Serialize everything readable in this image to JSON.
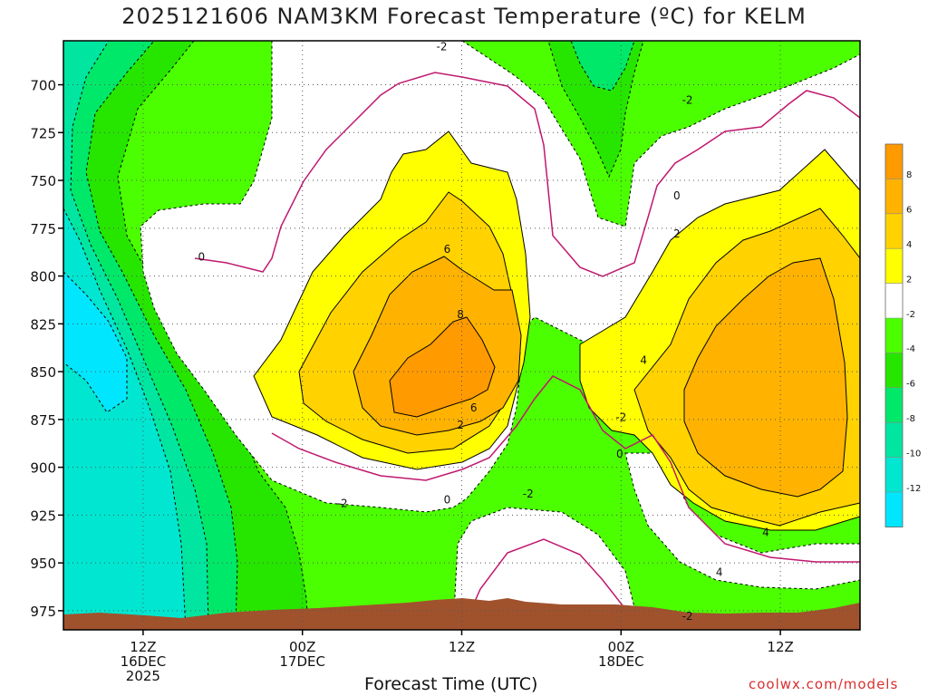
{
  "title": "2025121606 NAM3KM Forecast Temperature (ºC) for KELM",
  "xlabel": "Forecast Time (UTC)",
  "credit": "coolwx.com/models",
  "chart_data": {
    "type": "heatmap",
    "title": "2025121606 NAM3KM Forecast Temperature (ºC) for KELM",
    "xlabel": "Forecast Time (UTC)",
    "ylabel": "",
    "y_axis": {
      "label": "",
      "unit": "hPa",
      "ticks": [
        700,
        725,
        750,
        775,
        800,
        825,
        850,
        875,
        900,
        925,
        950,
        975
      ],
      "range": [
        677,
        985
      ],
      "inverted": true
    },
    "x_axis": {
      "label": "Forecast Time (UTC)",
      "range_hours": [
        0,
        60
      ],
      "ticks": [
        {
          "hour": 6,
          "lines": [
            "12Z",
            "16DEC",
            "2025"
          ]
        },
        {
          "hour": 18,
          "lines": [
            "00Z",
            "17DEC"
          ]
        },
        {
          "hour": 30,
          "lines": [
            "12Z"
          ]
        },
        {
          "hour": 42,
          "lines": [
            "00Z",
            "18DEC"
          ]
        },
        {
          "hour": 54,
          "lines": [
            "12Z"
          ]
        }
      ]
    },
    "grid": true,
    "colorbar": {
      "position": "right",
      "levels": [
        {
          "range": [
            8,
            10
          ],
          "color": "#ff9a00"
        },
        {
          "range": [
            6,
            8
          ],
          "color": "#ffb300"
        },
        {
          "range": [
            4,
            6
          ],
          "color": "#ffd200"
        },
        {
          "range": [
            2,
            4
          ],
          "color": "#ffff00"
        },
        {
          "range": [
            -2,
            2
          ],
          "color": "#ffffff"
        },
        {
          "range": [
            -4,
            -2
          ],
          "color": "#4cff00"
        },
        {
          "range": [
            -6,
            -4
          ],
          "color": "#26e600"
        },
        {
          "range": [
            -8,
            -6
          ],
          "color": "#00e86a"
        },
        {
          "range": [
            -10,
            -8
          ],
          "color": "#00e6a0"
        },
        {
          "range": [
            -12,
            -10
          ],
          "color": "#00e6d0"
        },
        {
          "range": [
            -14,
            -12
          ],
          "color": "#00e6ff"
        }
      ],
      "tick_labels": [
        "8",
        "6",
        "4",
        "2",
        "-2",
        "-4",
        "-6",
        "-8",
        "-10",
        "-12"
      ]
    },
    "contour_labels": [
      {
        "text": "-2",
        "hour": 28.5,
        "p": 680
      },
      {
        "text": "-2",
        "hour": 47.0,
        "p": 708
      },
      {
        "text": "0",
        "hour": 46.2,
        "p": 758
      },
      {
        "text": "2",
        "hour": 46.2,
        "p": 778
      },
      {
        "text": "0",
        "hour": 10.4,
        "p": 790
      },
      {
        "text": "6",
        "hour": 28.9,
        "p": 786
      },
      {
        "text": "8",
        "hour": 29.9,
        "p": 820
      },
      {
        "text": "4",
        "hour": 43.7,
        "p": 844
      },
      {
        "text": "6",
        "hour": 30.9,
        "p": 869
      },
      {
        "text": "2",
        "hour": 29.9,
        "p": 878
      },
      {
        "text": "-2",
        "hour": 42.0,
        "p": 874
      },
      {
        "text": "0",
        "hour": 41.9,
        "p": 893
      },
      {
        "text": "0",
        "hour": 28.9,
        "p": 917
      },
      {
        "text": "-2",
        "hour": 35.0,
        "p": 914
      },
      {
        "text": "-2",
        "hour": 21.0,
        "p": 919
      },
      {
        "text": "4",
        "hour": 52.9,
        "p": 934
      },
      {
        "text": "4",
        "hour": 49.4,
        "p": 955
      },
      {
        "text": "-2",
        "hour": 47.0,
        "p": 978
      }
    ]
  }
}
